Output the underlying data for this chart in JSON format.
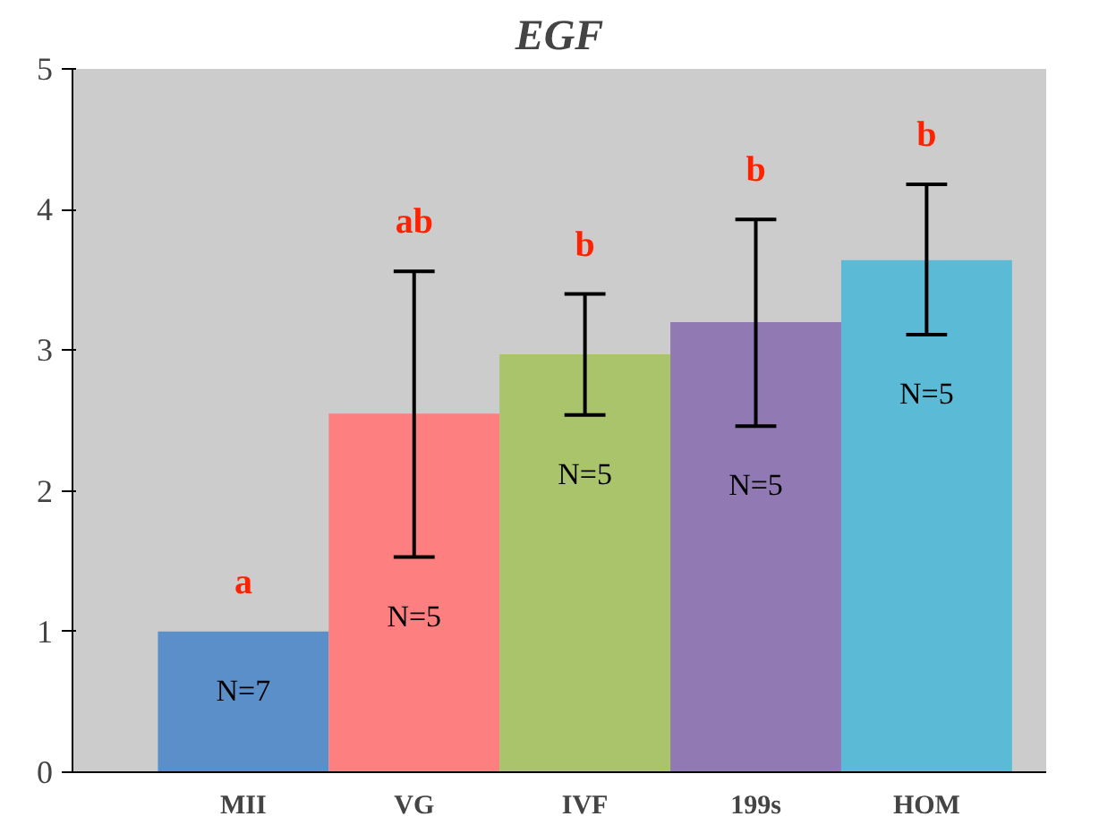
{
  "chart_data": {
    "type": "bar",
    "title": "EGF",
    "categories": [
      "MII",
      "VG",
      "IVF",
      "199s",
      "HOM"
    ],
    "values": [
      1.0,
      2.55,
      2.97,
      3.2,
      3.64
    ],
    "colors": [
      "#5b8fc9",
      "#fe7f7f",
      "#a9c46a",
      "#9179b4",
      "#5bbad5"
    ],
    "errors": [
      null,
      [
        1.53,
        3.56
      ],
      [
        2.54,
        3.4
      ],
      [
        2.46,
        3.93
      ],
      [
        3.11,
        4.18
      ]
    ],
    "ylim": [
      0,
      5
    ],
    "yticks": [
      0,
      1,
      2,
      3,
      4,
      5
    ],
    "grid": false,
    "annotations": [
      "a",
      "ab",
      "b",
      "b",
      "b",
      "N=7",
      "N=5",
      "N=5",
      "N=5",
      "N=5"
    ]
  }
}
